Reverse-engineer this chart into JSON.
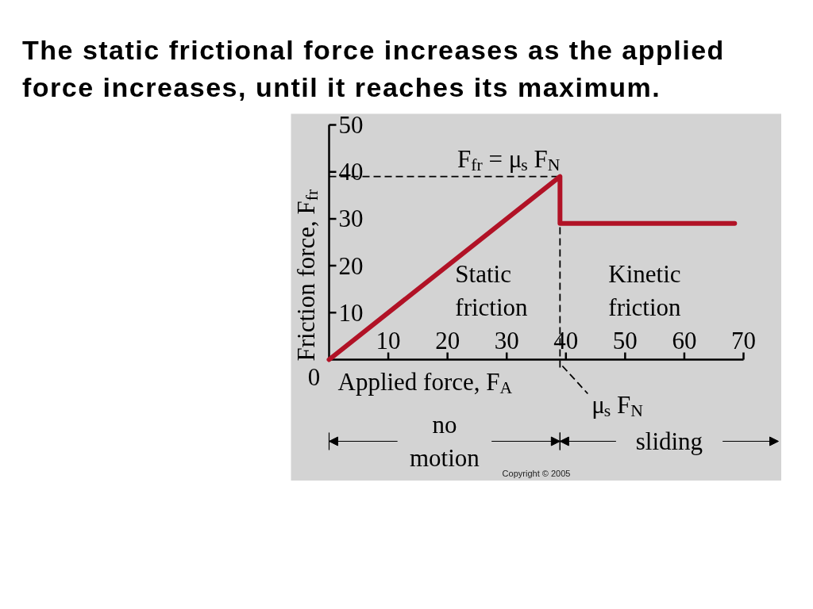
{
  "chart_data": {
    "type": "line",
    "title": "The static frictional force increases as the applied force increases, until it reaches its maximum.",
    "xlabel": "Applied force, F$_{A}$",
    "ylabel": "Friction force, F$_{fr}$",
    "x": [
      0,
      39,
      39,
      68.5
    ],
    "values": [
      0,
      39,
      29,
      29
    ],
    "color": "#b11226",
    "line_style": "solid",
    "xlim": [
      0,
      70
    ],
    "ylim": [
      0,
      50
    ],
    "xticks": [
      10,
      20,
      30,
      40,
      50,
      60,
      70
    ],
    "yticks": [
      10,
      20,
      30,
      40,
      50
    ],
    "ref_lines": [
      {
        "axis": "y",
        "value": 39,
        "label": "F$_{fr}$ = μ$_{s}$ F$_{N}$",
        "color": "#000000",
        "line_style": "dashed"
      },
      {
        "axis": "x",
        "value": 39,
        "label": "μ$_{s}$ F$_{N}$",
        "color": "#000000",
        "line_style": "dashed"
      }
    ],
    "annotations": [
      {
        "text": "0",
        "x": 0,
        "y": 0
      },
      "Static\nfriction",
      "Kinetic\nfriction",
      "no\nmotion",
      "sliding",
      "Copyright © 2005"
    ]
  }
}
